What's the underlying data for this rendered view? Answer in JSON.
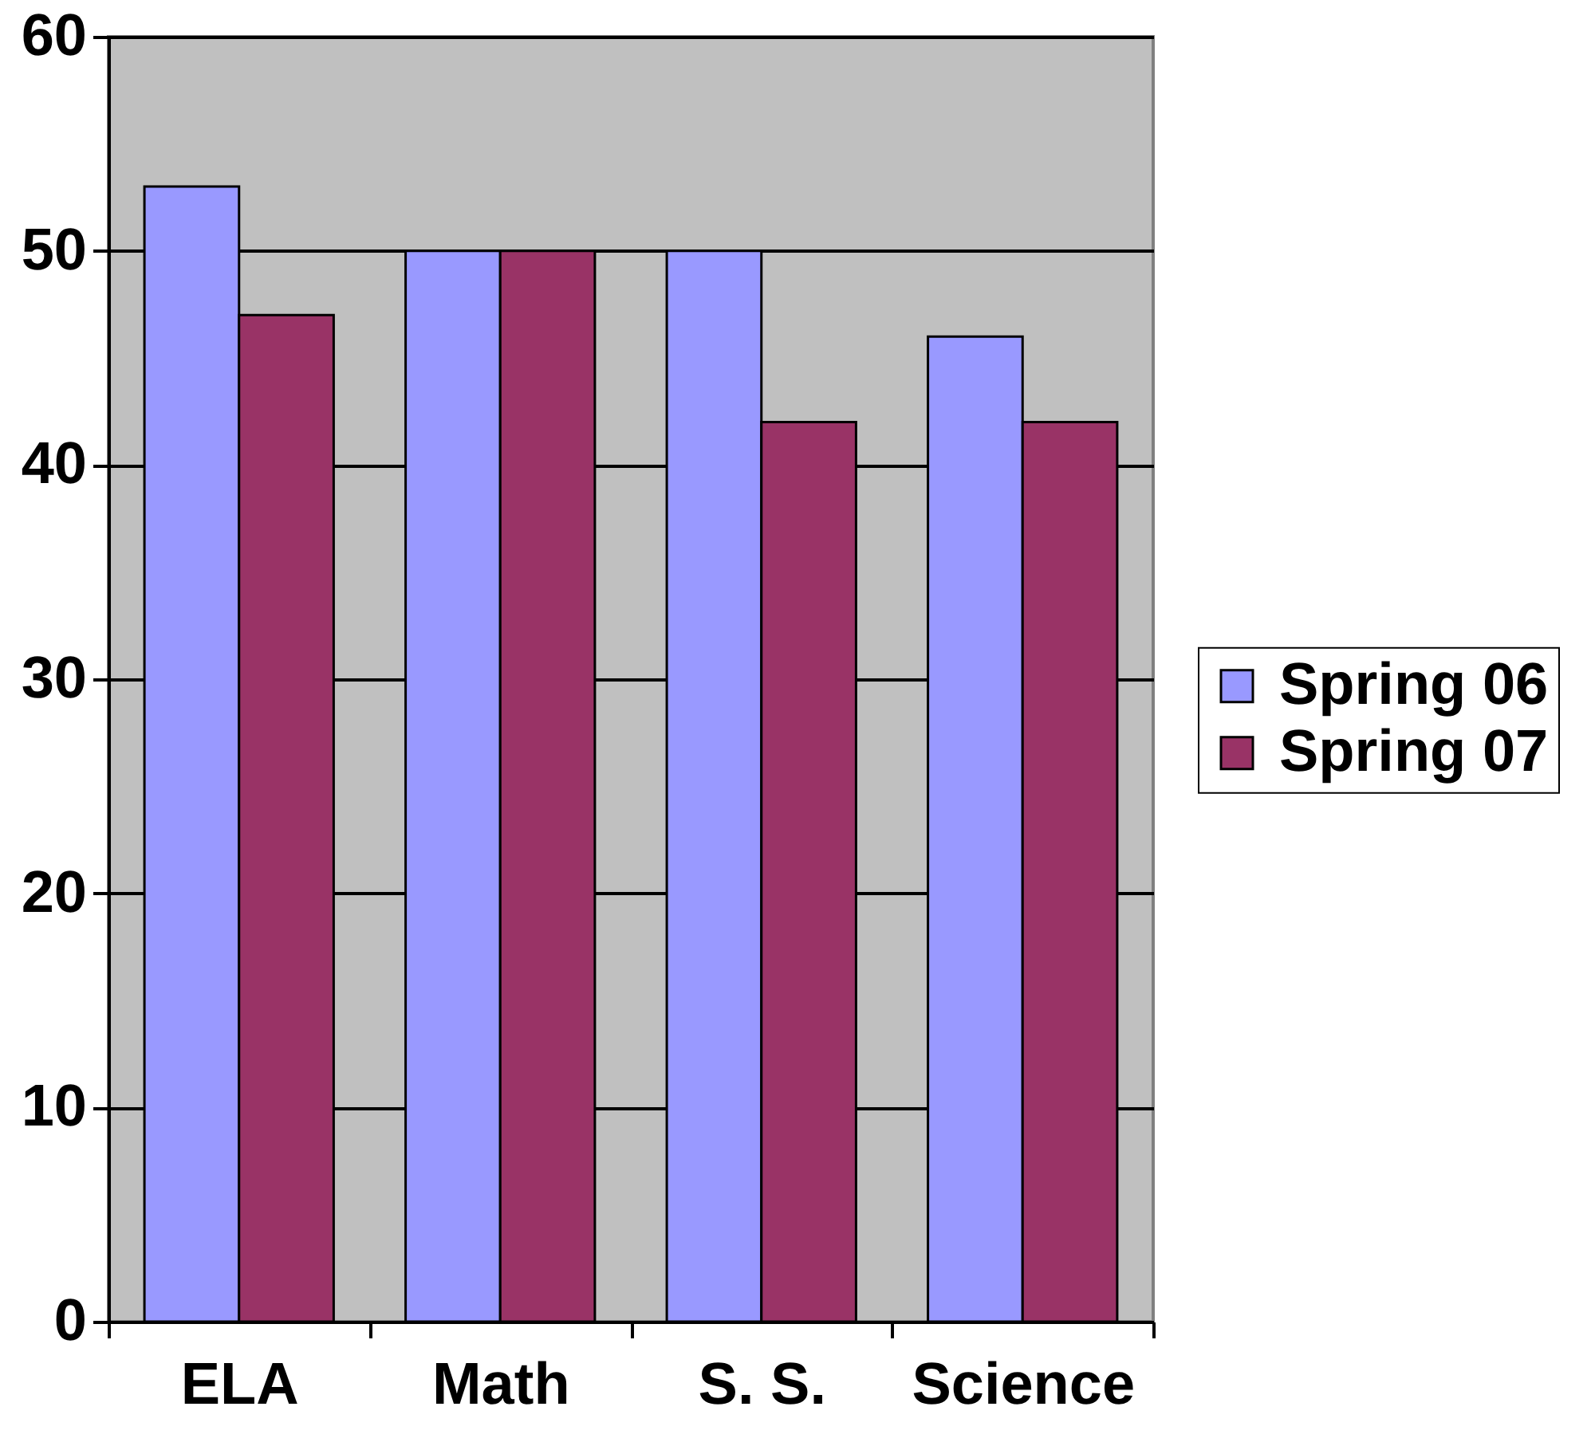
{
  "chart_data": {
    "type": "bar",
    "categories": [
      "ELA",
      "Math",
      "S. S.",
      "Science"
    ],
    "series": [
      {
        "name": "Spring 06",
        "color": "#9999ff",
        "values": [
          53,
          50,
          50,
          46
        ]
      },
      {
        "name": "Spring 07",
        "color": "#993366",
        "values": [
          47,
          50,
          42,
          42
        ]
      }
    ],
    "ylim": [
      0,
      60
    ],
    "yticks": [
      0,
      10,
      20,
      30,
      40,
      50,
      60
    ],
    "grid": "y",
    "legend": "right"
  }
}
